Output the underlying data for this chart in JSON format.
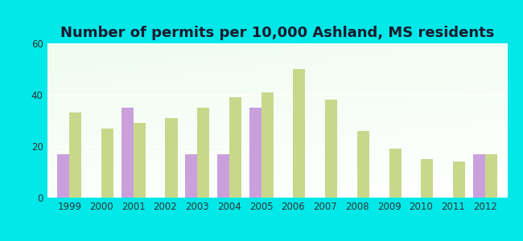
{
  "title": "Number of permits per 10,000 Ashland, MS residents",
  "years": [
    1999,
    2000,
    2001,
    2002,
    2003,
    2004,
    2005,
    2006,
    2007,
    2008,
    2009,
    2010,
    2011,
    2012
  ],
  "ashland": [
    17,
    0,
    35,
    0,
    17,
    17,
    35,
    0,
    0,
    0,
    0,
    0,
    0,
    17
  ],
  "ms_avg": [
    33,
    27,
    29,
    31,
    35,
    39,
    41,
    50,
    38,
    26,
    19,
    15,
    14,
    17
  ],
  "ashland_color": "#c9a0dc",
  "ms_avg_color": "#c8d88a",
  "outer_bg": "#00e8e8",
  "ylim": [
    0,
    60
  ],
  "yticks": [
    0,
    20,
    40,
    60
  ],
  "bar_width": 0.38,
  "title_fontsize": 13,
  "tick_fontsize": 8.5
}
